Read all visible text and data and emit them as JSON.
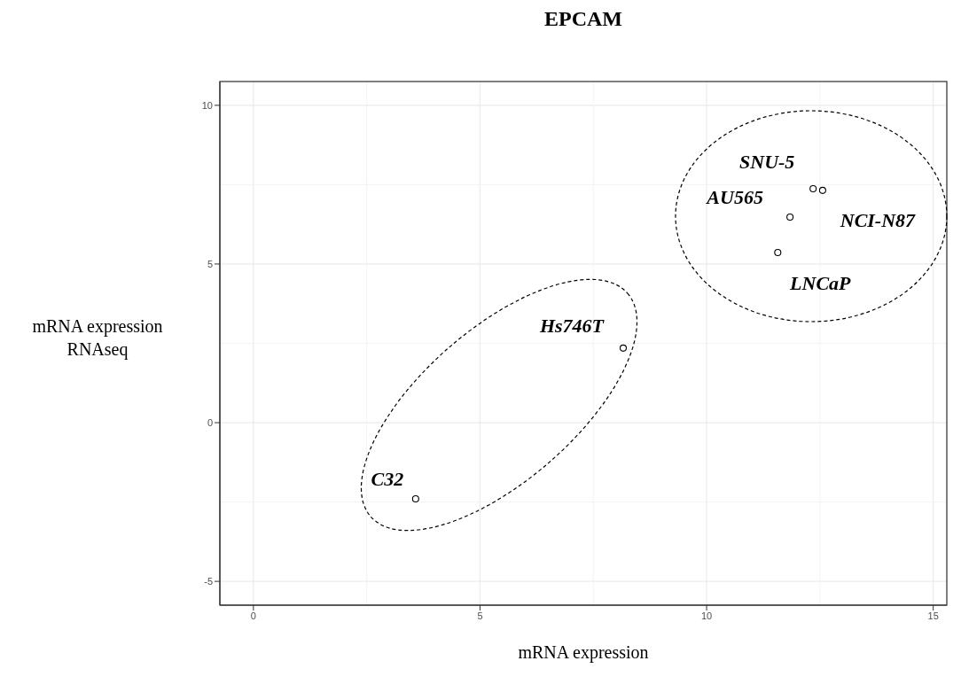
{
  "chart_data": {
    "type": "scatter",
    "title": "EPCAM",
    "xlabel": "mRNA expression",
    "ylabel": "mRNA expression\nRNAseq",
    "x": [
      12.35,
      11.84,
      12.56,
      11.57,
      8.16,
      3.58
    ],
    "values": [
      7.37,
      6.48,
      7.32,
      5.36,
      2.35,
      -2.4
    ],
    "color": "#000000",
    "marker": "circle",
    "xlim": [
      -0.74,
      15.3
    ],
    "xticks": [
      0,
      5,
      10,
      15
    ],
    "ylim": [
      -5.75,
      10.75
    ],
    "yticks": [
      -5,
      0,
      5,
      10
    ],
    "grid": true,
    "annotations": [
      {
        "text": "SNU-5",
        "x": 12.35,
        "y": 7.37
      },
      {
        "text": "AU565",
        "x": 11.84,
        "y": 6.48
      },
      {
        "text": "NCI-N87",
        "x": 12.56,
        "y": 7.32
      },
      {
        "text": "LNCaP",
        "x": 11.57,
        "y": 5.36
      },
      {
        "text": "Hs746T",
        "x": 8.16,
        "y": 2.35
      },
      {
        "text": "C32",
        "x": 3.58,
        "y": -2.4
      }
    ]
  }
}
